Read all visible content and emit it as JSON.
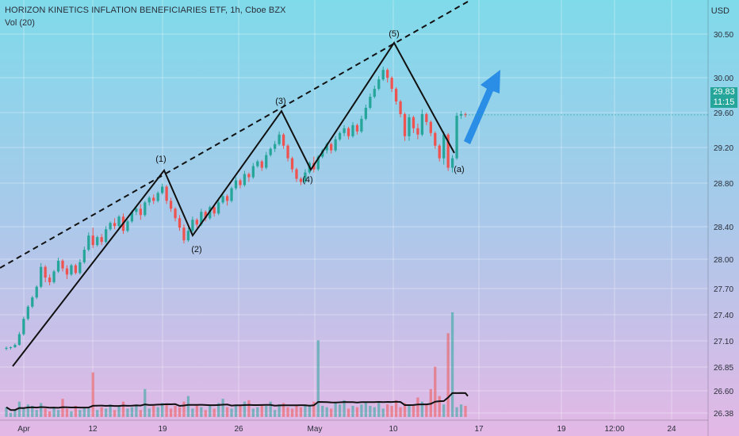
{
  "header": {
    "title": "HORIZON KINETICS INFLATION BENEFICIARIES ETF, 1h, Cboe BZX",
    "volume_label": "Vol (20)",
    "currency": "USD"
  },
  "current_price": {
    "value": "29.83",
    "countdown": "11:15",
    "color": "#26a69a"
  },
  "colors": {
    "up": "#26a69a",
    "down": "#ef5350",
    "wave_line": "#111111",
    "arrow": "#2b8ee6",
    "volume_ma": "#111111"
  },
  "chart_data": {
    "type": "candlestick",
    "y_axis": {
      "ticks": [
        "30.50",
        "30.00",
        "29.60",
        "29.20",
        "28.80",
        "28.40",
        "28.00",
        "27.70",
        "27.40",
        "27.10",
        "26.85",
        "26.60",
        "26.38"
      ]
    },
    "x_axis": {
      "ticks": [
        "Apr",
        "12",
        "19",
        "26",
        "May",
        "10",
        "17",
        "19",
        "12:00",
        "24"
      ]
    },
    "wave_labels": [
      {
        "label": "(1)",
        "x": "19",
        "price": 28.92
      },
      {
        "label": "(2)",
        "x": "22",
        "price": 28.22
      },
      {
        "label": "(3)",
        "x": "30",
        "price": 29.62
      },
      {
        "label": "(4)",
        "x": "May 3",
        "price": 28.98
      },
      {
        "label": "(5)",
        "x": "10",
        "price": 30.42
      },
      {
        "label": "(a)",
        "x": "14",
        "price": 29.15
      }
    ],
    "candles": [
      {
        "o": 26.83,
        "h": 26.86,
        "l": 26.81,
        "c": 26.84
      },
      {
        "o": 26.84,
        "h": 26.86,
        "l": 26.82,
        "c": 26.85
      },
      {
        "o": 26.85,
        "h": 26.9,
        "l": 26.84,
        "c": 26.88
      },
      {
        "o": 26.88,
        "h": 27.05,
        "l": 26.87,
        "c": 27.02
      },
      {
        "o": 27.02,
        "h": 27.25,
        "l": 27.0,
        "c": 27.22
      },
      {
        "o": 27.22,
        "h": 27.4,
        "l": 27.2,
        "c": 27.38
      },
      {
        "o": 27.38,
        "h": 27.52,
        "l": 27.36,
        "c": 27.5
      },
      {
        "o": 27.5,
        "h": 27.66,
        "l": 27.48,
        "c": 27.64
      },
      {
        "o": 27.64,
        "h": 27.95,
        "l": 27.62,
        "c": 27.9
      },
      {
        "o": 27.9,
        "h": 27.92,
        "l": 27.7,
        "c": 27.76
      },
      {
        "o": 27.76,
        "h": 27.8,
        "l": 27.66,
        "c": 27.7
      },
      {
        "o": 27.7,
        "h": 27.86,
        "l": 27.68,
        "c": 27.84
      },
      {
        "o": 27.84,
        "h": 28.02,
        "l": 27.82,
        "c": 27.98
      },
      {
        "o": 27.98,
        "h": 28.0,
        "l": 27.84,
        "c": 27.88
      },
      {
        "o": 27.88,
        "h": 27.92,
        "l": 27.74,
        "c": 27.8
      },
      {
        "o": 27.8,
        "h": 27.94,
        "l": 27.78,
        "c": 27.92
      },
      {
        "o": 27.92,
        "h": 27.94,
        "l": 27.8,
        "c": 27.82
      },
      {
        "o": 27.82,
        "h": 28.0,
        "l": 27.8,
        "c": 27.96
      },
      {
        "o": 27.96,
        "h": 28.16,
        "l": 27.94,
        "c": 28.12
      },
      {
        "o": 28.12,
        "h": 28.34,
        "l": 28.1,
        "c": 28.3
      },
      {
        "o": 28.3,
        "h": 28.4,
        "l": 28.14,
        "c": 28.18
      },
      {
        "o": 28.18,
        "h": 28.3,
        "l": 28.16,
        "c": 28.28
      },
      {
        "o": 28.28,
        "h": 28.32,
        "l": 28.18,
        "c": 28.22
      },
      {
        "o": 28.22,
        "h": 28.42,
        "l": 28.2,
        "c": 28.38
      },
      {
        "o": 28.38,
        "h": 28.48,
        "l": 28.36,
        "c": 28.46
      },
      {
        "o": 28.46,
        "h": 28.52,
        "l": 28.38,
        "c": 28.42
      },
      {
        "o": 28.42,
        "h": 28.56,
        "l": 28.4,
        "c": 28.54
      },
      {
        "o": 28.54,
        "h": 28.58,
        "l": 28.32,
        "c": 28.36
      },
      {
        "o": 28.36,
        "h": 28.5,
        "l": 28.34,
        "c": 28.48
      },
      {
        "o": 28.48,
        "h": 28.62,
        "l": 28.46,
        "c": 28.6
      },
      {
        "o": 28.6,
        "h": 28.66,
        "l": 28.56,
        "c": 28.64
      },
      {
        "o": 28.64,
        "h": 28.7,
        "l": 28.5,
        "c": 28.56
      },
      {
        "o": 28.56,
        "h": 28.74,
        "l": 28.54,
        "c": 28.72
      },
      {
        "o": 28.72,
        "h": 28.8,
        "l": 28.68,
        "c": 28.78
      },
      {
        "o": 28.78,
        "h": 28.82,
        "l": 28.7,
        "c": 28.74
      },
      {
        "o": 28.74,
        "h": 28.86,
        "l": 28.72,
        "c": 28.84
      },
      {
        "o": 28.84,
        "h": 28.96,
        "l": 28.82,
        "c": 28.92
      },
      {
        "o": 28.92,
        "h": 28.94,
        "l": 28.7,
        "c": 28.74
      },
      {
        "o": 28.74,
        "h": 28.78,
        "l": 28.6,
        "c": 28.64
      },
      {
        "o": 28.64,
        "h": 28.66,
        "l": 28.48,
        "c": 28.52
      },
      {
        "o": 28.52,
        "h": 28.56,
        "l": 28.36,
        "c": 28.4
      },
      {
        "o": 28.4,
        "h": 28.44,
        "l": 28.2,
        "c": 28.24
      },
      {
        "o": 28.24,
        "h": 28.4,
        "l": 28.22,
        "c": 28.36
      },
      {
        "o": 28.36,
        "h": 28.54,
        "l": 28.34,
        "c": 28.5
      },
      {
        "o": 28.5,
        "h": 28.52,
        "l": 28.4,
        "c": 28.44
      },
      {
        "o": 28.44,
        "h": 28.64,
        "l": 28.42,
        "c": 28.6
      },
      {
        "o": 28.6,
        "h": 28.62,
        "l": 28.48,
        "c": 28.52
      },
      {
        "o": 28.52,
        "h": 28.68,
        "l": 28.5,
        "c": 28.66
      },
      {
        "o": 28.66,
        "h": 28.68,
        "l": 28.54,
        "c": 28.58
      },
      {
        "o": 28.58,
        "h": 28.76,
        "l": 28.56,
        "c": 28.72
      },
      {
        "o": 28.72,
        "h": 28.82,
        "l": 28.7,
        "c": 28.8
      },
      {
        "o": 28.8,
        "h": 28.82,
        "l": 28.68,
        "c": 28.74
      },
      {
        "o": 28.74,
        "h": 28.92,
        "l": 28.72,
        "c": 28.9
      },
      {
        "o": 28.9,
        "h": 29.04,
        "l": 28.88,
        "c": 29.0
      },
      {
        "o": 29.0,
        "h": 29.02,
        "l": 28.9,
        "c": 28.94
      },
      {
        "o": 28.94,
        "h": 29.12,
        "l": 28.92,
        "c": 29.08
      },
      {
        "o": 29.08,
        "h": 29.1,
        "l": 28.98,
        "c": 29.04
      },
      {
        "o": 29.04,
        "h": 29.22,
        "l": 29.02,
        "c": 29.18
      },
      {
        "o": 29.18,
        "h": 29.26,
        "l": 29.16,
        "c": 29.24
      },
      {
        "o": 29.24,
        "h": 29.26,
        "l": 29.12,
        "c": 29.16
      },
      {
        "o": 29.16,
        "h": 29.36,
        "l": 29.14,
        "c": 29.32
      },
      {
        "o": 29.32,
        "h": 29.42,
        "l": 29.3,
        "c": 29.4
      },
      {
        "o": 29.4,
        "h": 29.5,
        "l": 29.36,
        "c": 29.46
      },
      {
        "o": 29.46,
        "h": 29.62,
        "l": 29.44,
        "c": 29.58
      },
      {
        "o": 29.58,
        "h": 29.6,
        "l": 29.4,
        "c": 29.44
      },
      {
        "o": 29.44,
        "h": 29.46,
        "l": 29.24,
        "c": 29.28
      },
      {
        "o": 29.28,
        "h": 29.3,
        "l": 29.1,
        "c": 29.14
      },
      {
        "o": 29.14,
        "h": 29.16,
        "l": 28.98,
        "c": 29.02
      },
      {
        "o": 29.02,
        "h": 29.04,
        "l": 28.94,
        "c": 28.98
      },
      {
        "o": 28.98,
        "h": 29.14,
        "l": 28.96,
        "c": 29.1
      },
      {
        "o": 29.1,
        "h": 29.24,
        "l": 29.08,
        "c": 29.22
      },
      {
        "o": 29.22,
        "h": 29.3,
        "l": 29.1,
        "c": 29.14
      },
      {
        "o": 29.14,
        "h": 29.32,
        "l": 29.12,
        "c": 29.3
      },
      {
        "o": 29.3,
        "h": 29.4,
        "l": 29.28,
        "c": 29.38
      },
      {
        "o": 29.38,
        "h": 29.48,
        "l": 29.34,
        "c": 29.46
      },
      {
        "o": 29.46,
        "h": 29.48,
        "l": 29.34,
        "c": 29.38
      },
      {
        "o": 29.38,
        "h": 29.56,
        "l": 29.36,
        "c": 29.52
      },
      {
        "o": 29.52,
        "h": 29.62,
        "l": 29.5,
        "c": 29.6
      },
      {
        "o": 29.6,
        "h": 29.7,
        "l": 29.56,
        "c": 29.66
      },
      {
        "o": 29.66,
        "h": 29.68,
        "l": 29.52,
        "c": 29.56
      },
      {
        "o": 29.56,
        "h": 29.74,
        "l": 29.54,
        "c": 29.7
      },
      {
        "o": 29.7,
        "h": 29.72,
        "l": 29.58,
        "c": 29.62
      },
      {
        "o": 29.62,
        "h": 29.82,
        "l": 29.6,
        "c": 29.78
      },
      {
        "o": 29.78,
        "h": 29.96,
        "l": 29.76,
        "c": 29.92
      },
      {
        "o": 29.92,
        "h": 30.1,
        "l": 29.9,
        "c": 30.06
      },
      {
        "o": 30.06,
        "h": 30.2,
        "l": 30.04,
        "c": 30.16
      },
      {
        "o": 30.16,
        "h": 30.32,
        "l": 30.14,
        "c": 30.28
      },
      {
        "o": 30.28,
        "h": 30.44,
        "l": 30.26,
        "c": 30.4
      },
      {
        "o": 30.4,
        "h": 30.42,
        "l": 30.24,
        "c": 30.3
      },
      {
        "o": 30.3,
        "h": 30.32,
        "l": 30.12,
        "c": 30.16
      },
      {
        "o": 30.16,
        "h": 30.18,
        "l": 29.96,
        "c": 30.0
      },
      {
        "o": 30.0,
        "h": 30.02,
        "l": 29.8,
        "c": 29.84
      },
      {
        "o": 29.84,
        "h": 29.86,
        "l": 29.5,
        "c": 29.56
      },
      {
        "o": 29.56,
        "h": 29.84,
        "l": 29.5,
        "c": 29.8
      },
      {
        "o": 29.8,
        "h": 29.82,
        "l": 29.6,
        "c": 29.66
      },
      {
        "o": 29.66,
        "h": 29.72,
        "l": 29.52,
        "c": 29.58
      },
      {
        "o": 29.58,
        "h": 29.9,
        "l": 29.56,
        "c": 29.84
      },
      {
        "o": 29.84,
        "h": 29.86,
        "l": 29.7,
        "c": 29.74
      },
      {
        "o": 29.74,
        "h": 29.76,
        "l": 29.56,
        "c": 29.6
      },
      {
        "o": 29.6,
        "h": 29.62,
        "l": 29.4,
        "c": 29.44
      },
      {
        "o": 29.44,
        "h": 29.46,
        "l": 29.24,
        "c": 29.28
      },
      {
        "o": 29.28,
        "h": 29.62,
        "l": 29.2,
        "c": 29.58
      },
      {
        "o": 29.58,
        "h": 29.6,
        "l": 29.12,
        "c": 29.16
      },
      {
        "o": 29.16,
        "h": 29.32,
        "l": 29.1,
        "c": 29.28
      },
      {
        "o": 29.28,
        "h": 29.86,
        "l": 29.26,
        "c": 29.82
      },
      {
        "o": 29.82,
        "h": 29.88,
        "l": 29.78,
        "c": 29.84
      },
      {
        "o": 29.84,
        "h": 29.86,
        "l": 29.8,
        "c": 29.83
      }
    ],
    "volume": [
      14,
      6,
      10,
      22,
      12,
      18,
      16,
      10,
      20,
      12,
      8,
      14,
      10,
      26,
      12,
      8,
      16,
      10,
      14,
      12,
      64,
      10,
      14,
      12,
      18,
      10,
      16,
      22,
      12,
      14,
      18,
      10,
      40,
      12,
      16,
      14,
      20,
      18,
      12,
      16,
      14,
      22,
      30,
      12,
      18,
      14,
      10,
      16,
      12,
      20,
      26,
      14,
      12,
      18,
      16,
      22,
      24,
      12,
      14,
      18,
      16,
      22,
      10,
      18,
      20,
      14,
      12,
      16,
      14,
      18,
      16,
      22,
      110,
      16,
      14,
      12,
      20,
      18,
      24,
      12,
      16,
      14,
      18,
      22,
      16,
      14,
      20,
      12,
      18,
      16,
      24,
      14,
      20,
      18,
      16,
      28,
      22,
      18,
      40,
      72,
      30,
      18,
      120,
      150,
      14,
      18,
      16
    ]
  }
}
